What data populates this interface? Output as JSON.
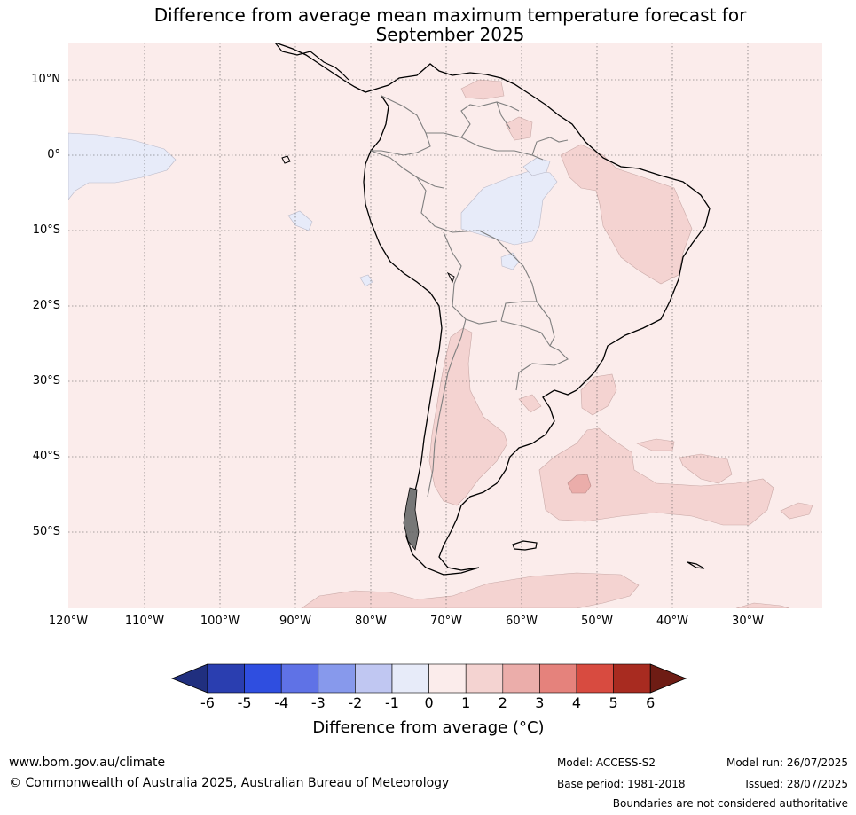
{
  "title": {
    "line1": "Difference from average mean maximum temperature forecast for",
    "line2": "September 2025"
  },
  "map": {
    "lat_labels": [
      "10°N",
      "0°",
      "10°S",
      "20°S",
      "30°S",
      "40°S",
      "50°S"
    ],
    "lon_labels": [
      "120°W",
      "110°W",
      "100°W",
      "90°W",
      "80°W",
      "70°W",
      "60°W",
      "50°W",
      "40°W",
      "30°W"
    ],
    "colors": {
      "background_anomaly_0_1": "#fbeceb",
      "anomaly_1_2": "#f4d3d1",
      "anomaly_2_3": "#ebadaa",
      "anomaly_minus1_0": "#e7ebf9",
      "coastline": "#000000",
      "border": "#7f7f7f"
    }
  },
  "colorbar": {
    "ticks": [
      "-6",
      "-5",
      "-4",
      "-3",
      "-2",
      "-1",
      "0",
      "1",
      "2",
      "3",
      "4",
      "5",
      "6"
    ],
    "colors": [
      "#202f7f",
      "#2a3eb0",
      "#2f4ee0",
      "#5f72e6",
      "#8799ec",
      "#c0c7f2",
      "#e7ebf9",
      "#fbeceb",
      "#f4d3d1",
      "#ebadaa",
      "#e5827c",
      "#d84b40",
      "#a82b20",
      "#6e1c14"
    ],
    "label": "Difference from average (°C)"
  },
  "footer": {
    "url": "www.bom.gov.au/climate",
    "copyright": "© Commonwealth of Australia 2025, Australian Bureau of Meteorology",
    "model": "Model: ACCESS-S2",
    "base_period": "Base period: 1981-2018",
    "model_run": "Model run: 26/07/2025",
    "issued": "Issued: 28/07/2025",
    "disclaimer": "Boundaries are not considered authoritative"
  }
}
